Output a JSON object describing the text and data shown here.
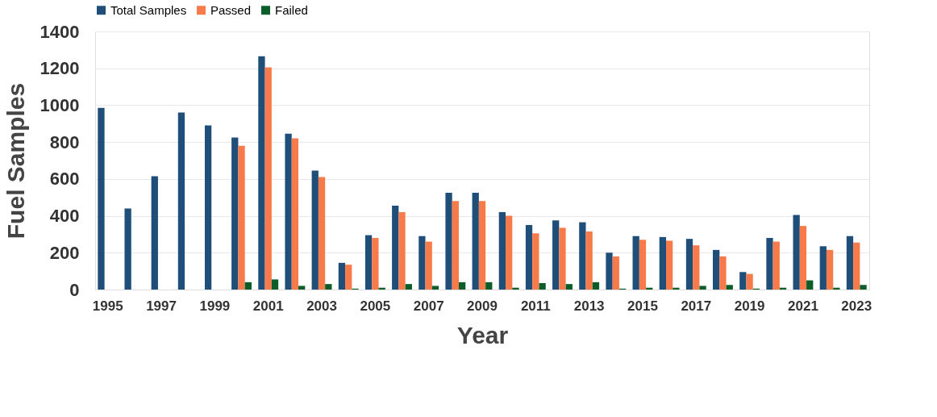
{
  "chart_data": {
    "type": "bar",
    "xlabel": "Year",
    "ylabel": "Fuel Samples",
    "categories": [
      "1995",
      null,
      "1997",
      null,
      "1999",
      null,
      "2001",
      null,
      "2003",
      null,
      "2005",
      null,
      "2007",
      null,
      "2009",
      null,
      "2011",
      null,
      "2013",
      null,
      "2015",
      null,
      "2017",
      null,
      "2019",
      null,
      "2021",
      null,
      "2023"
    ],
    "series": [
      {
        "name": "Total Samples",
        "color": "#1f4e79",
        "values": [
          985,
          440,
          615,
          960,
          890,
          825,
          1265,
          845,
          645,
          145,
          295,
          455,
          290,
          525,
          525,
          420,
          350,
          375,
          365,
          200,
          290,
          285,
          275,
          215,
          95,
          280,
          405,
          235,
          290
        ]
      },
      {
        "name": "Passed",
        "color": "#f77a4a",
        "values": [
          null,
          null,
          null,
          null,
          null,
          780,
          1205,
          820,
          610,
          135,
          280,
          420,
          260,
          480,
          480,
          400,
          305,
          335,
          315,
          180,
          270,
          265,
          240,
          180,
          85,
          260,
          345,
          215,
          255
        ]
      },
      {
        "name": "Failed",
        "color": "#0b5e2a",
        "values": [
          null,
          null,
          null,
          null,
          null,
          40,
          55,
          20,
          30,
          5,
          10,
          30,
          20,
          40,
          40,
          10,
          35,
          30,
          40,
          5,
          10,
          10,
          20,
          25,
          5,
          10,
          50,
          10,
          25
        ]
      }
    ],
    "ylim": [
      0,
      1400
    ],
    "yticks": [
      0,
      200,
      400,
      600,
      800,
      1000,
      1200,
      1400
    ],
    "grid": "y",
    "legend": "top"
  }
}
